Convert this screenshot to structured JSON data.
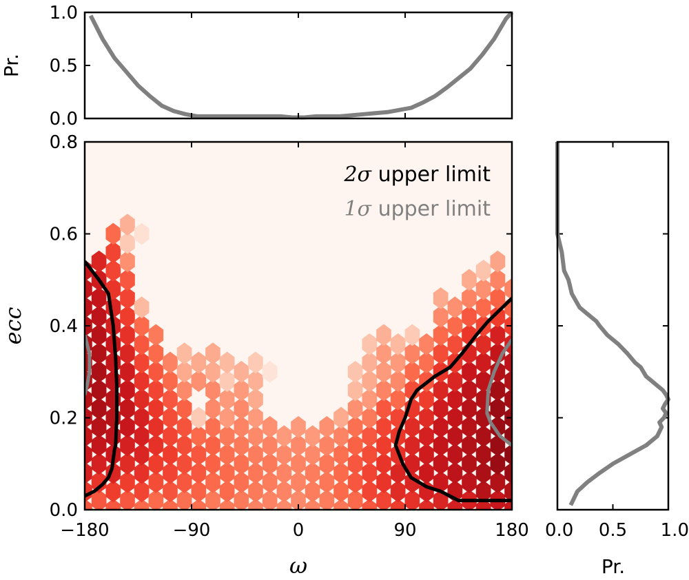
{
  "chart_data": [
    {
      "panel": "top-marginal",
      "type": "line",
      "ylabel": "Pr.",
      "xlim": [
        -180,
        180
      ],
      "ylim": [
        0.0,
        1.0
      ],
      "yticks": [
        "0.0",
        "0.5",
        "1.0"
      ],
      "series": [
        {
          "color": "#808080",
          "x": [
            -175,
            -165,
            -155,
            -145,
            -135,
            -125,
            -115,
            -105,
            -95,
            -85,
            -75,
            -65,
            -55,
            -45,
            -35,
            -25,
            -15,
            -5,
            5,
            15,
            25,
            35,
            45,
            55,
            65,
            75,
            85,
            95,
            105,
            115,
            125,
            135,
            145,
            155,
            165,
            175,
            180
          ],
          "y": [
            0.97,
            0.75,
            0.57,
            0.44,
            0.31,
            0.21,
            0.12,
            0.07,
            0.04,
            0.02,
            0.02,
            0.02,
            0.02,
            0.02,
            0.02,
            0.02,
            0.02,
            0.01,
            0.01,
            0.02,
            0.02,
            0.02,
            0.03,
            0.04,
            0.05,
            0.06,
            0.08,
            0.1,
            0.15,
            0.21,
            0.29,
            0.38,
            0.47,
            0.6,
            0.75,
            0.94,
            1.0
          ]
        }
      ]
    },
    {
      "panel": "main-hexbin",
      "type": "heatmap",
      "xlabel": "ω",
      "ylabel": "ecc",
      "xlim": [
        -180,
        180
      ],
      "ylim": [
        0.0,
        0.8
      ],
      "xticks": [
        "−180",
        "−90",
        "0",
        "90",
        "180"
      ],
      "yticks": [
        "0.0",
        "0.2",
        "0.4",
        "0.6",
        "0.8"
      ],
      "background_color": "#fff5f0",
      "colormap": [
        "#fff5f0",
        "#fee0d2",
        "#fcbba1",
        "#fc9272",
        "#fb6a4a",
        "#ef3b2c",
        "#cb181d",
        "#a50f15",
        "#67000d"
      ],
      "hex_columns_omega": [
        -180,
        -168,
        -156,
        -144,
        -132,
        -120,
        -108,
        -96,
        -84,
        -72,
        -60,
        -48,
        -36,
        -24,
        -12,
        0,
        12,
        24,
        36,
        48,
        60,
        72,
        84,
        96,
        108,
        120,
        132,
        144,
        156,
        168,
        180
      ],
      "hex_row_spacing_ecc": 0.04,
      "hex_row_offset_ecc": 0.02,
      "counts_by_column": [
        [
          0.55,
          0.65,
          0.72,
          0.75,
          0.78,
          0.8,
          0.82,
          0.84,
          0.84,
          0.82,
          0.82,
          0.8,
          0.78,
          0.76
        ],
        [
          0.55,
          0.65,
          0.72,
          0.78,
          0.82,
          0.86,
          0.86,
          0.86,
          0.84,
          0.82,
          0.8,
          0.78,
          0.74,
          0.7
        ],
        [
          0.55,
          0.62,
          0.7,
          0.75,
          0.8,
          0.82,
          0.82,
          0.8,
          0.78,
          0.76,
          0.72,
          0.7,
          0.65,
          0.6,
          0.6,
          0.5
        ],
        [
          0.55,
          0.62,
          0.68,
          0.72,
          0.76,
          0.78,
          0.76,
          0.74,
          0.7,
          0.66,
          0.62,
          0.6,
          0.55,
          0.38,
          0.2,
          0.28
        ],
        [
          0.5,
          0.6,
          0.66,
          0.7,
          0.72,
          0.72,
          0.68,
          0.65,
          0.6,
          0.55,
          0.5,
          0.25,
          0,
          0,
          0,
          0.12
        ],
        [
          0.5,
          0.58,
          0.62,
          0.66,
          0.66,
          0.64,
          0.6,
          0.55,
          0.5,
          0.45
        ],
        [
          0.5,
          0.56,
          0.6,
          0.62,
          0.6,
          0.58,
          0.55,
          0.5,
          0.42
        ],
        [
          0.48,
          0.55,
          0.58,
          0.58,
          0.56,
          0.52,
          0.4,
          0.3,
          0.25
        ],
        [
          0.48,
          0.52,
          0.55,
          0.55,
          0.5,
          0.2,
          0,
          0.38,
          0.3
        ],
        [
          0.45,
          0.5,
          0.52,
          0.52,
          0.48,
          0.4,
          0.4,
          0.3,
          0.3
        ],
        [
          0.45,
          0.5,
          0.5,
          0.48,
          0.45,
          0.35,
          0.35,
          0.2,
          0.25
        ],
        [
          0.45,
          0.48,
          0.48,
          0.45,
          0.42,
          0.4,
          0.35,
          0.28
        ],
        [
          0.42,
          0.45,
          0.46,
          0.44,
          0.4,
          0.35,
          0.3,
          0.28,
          0.2
        ],
        [
          0.42,
          0.44,
          0.45,
          0.42,
          0.38,
          0,
          0,
          0.1
        ],
        [
          0.4,
          0.42,
          0.42,
          0.4,
          0.35
        ],
        [
          0.4,
          0.42,
          0.42,
          0.4,
          0.35
        ],
        [
          0.42,
          0.44,
          0.44,
          0.4,
          0.35
        ],
        [
          0.44,
          0.46,
          0.46,
          0.42,
          0.38
        ],
        [
          0.46,
          0.5,
          0.5,
          0.48,
          0.42,
          0.3
        ],
        [
          0.5,
          0.55,
          0.55,
          0.52,
          0.48,
          0.38,
          0.25,
          0.22
        ],
        [
          0.55,
          0.6,
          0.6,
          0.58,
          0.55,
          0.45,
          0.35,
          0.3,
          0.28,
          0.22
        ],
        [
          0.6,
          0.65,
          0.65,
          0.62,
          0.6,
          0.55,
          0.42,
          0.35,
          0.35,
          0.28
        ],
        [
          0.62,
          0.68,
          0.7,
          0.66,
          0.64,
          0.6,
          0.5,
          0.4,
          0.35,
          0.25
        ],
        [
          0.66,
          0.7,
          0.72,
          0.7,
          0.68,
          0.64,
          0.58,
          0.5,
          0.42,
          0.2
        ],
        [
          0.68,
          0.72,
          0.75,
          0.74,
          0.72,
          0.68,
          0.62,
          0.55,
          0.48,
          0.42
        ],
        [
          0.7,
          0.75,
          0.78,
          0.78,
          0.76,
          0.74,
          0.7,
          0.64,
          0.58,
          0.5,
          0.4,
          0.3
        ],
        [
          0.72,
          0.78,
          0.8,
          0.8,
          0.8,
          0.78,
          0.75,
          0.7,
          0.64,
          0.58,
          0.5,
          0.38
        ],
        [
          0.72,
          0.8,
          0.84,
          0.84,
          0.82,
          0.82,
          0.8,
          0.76,
          0.7,
          0.64,
          0.55,
          0.42,
          0.3
        ],
        [
          0.74,
          0.82,
          0.86,
          0.86,
          0.86,
          0.86,
          0.84,
          0.8,
          0.74,
          0.68,
          0.6,
          0.5,
          0.38,
          0.22
        ],
        [
          0.76,
          0.84,
          0.9,
          0.9,
          0.9,
          0.9,
          0.88,
          0.84,
          0.78,
          0.72,
          0.62,
          0.52,
          0.42,
          0.32
        ],
        [
          0.76,
          0.84,
          0.9,
          0.92,
          0.92,
          0.9,
          0.88,
          0.84,
          0.8,
          0.72,
          0.62,
          0.52,
          0.42
        ]
      ],
      "series": [
        {
          "name": "2σ upper limit",
          "color": "#000000",
          "contours": [
            {
              "omega": [
                -180,
                -168,
                -160,
                -156,
                -154,
                -153,
                -153,
                -154,
                -155,
                -157,
                -160,
                -165,
                -172,
                -180
              ],
              "ecc": [
                0.54,
                0.5,
                0.47,
                0.4,
                0.33,
                0.27,
                0.2,
                0.14,
                0.13,
                0.09,
                0.07,
                0.055,
                0.04,
                0.03
              ]
            },
            {
              "omega": [
                180,
                168,
                160,
                150,
                138,
                128,
                115,
                100,
                95,
                90,
                85,
                82,
                88,
                95,
                108,
                120,
                135,
                150,
                165,
                180
              ],
              "ecc": [
                0.46,
                0.43,
                0.41,
                0.38,
                0.34,
                0.31,
                0.29,
                0.26,
                0.24,
                0.2,
                0.17,
                0.14,
                0.1,
                0.07,
                0.05,
                0.04,
                0.02,
                0.02,
                0.02,
                0.02
              ]
            }
          ]
        },
        {
          "name": "1σ upper limit",
          "color": "#808080",
          "contours": [
            {
              "omega": [
                -180,
                -176,
                -176,
                -178,
                -180
              ],
              "ecc": [
                0.38,
                0.34,
                0.3,
                0.27,
                0.25
              ]
            },
            {
              "omega": [
                180,
                172,
                165,
                160,
                159,
                162,
                170,
                180
              ],
              "ecc": [
                0.37,
                0.34,
                0.3,
                0.26,
                0.21,
                0.19,
                0.16,
                0.14
              ]
            }
          ]
        }
      ]
    },
    {
      "panel": "right-marginal",
      "type": "line",
      "xlabel": "Pr.",
      "xlim": [
        0.0,
        1.0
      ],
      "ylim": [
        0.0,
        0.8
      ],
      "xticks": [
        "0.0",
        "0.5",
        "1.0"
      ],
      "series": [
        {
          "color": "#808080",
          "pr": [
            0.0,
            0.0,
            0.02,
            0.04,
            0.06,
            0.1,
            0.13,
            0.2,
            0.3,
            0.35,
            0.38,
            0.45,
            0.55,
            0.63,
            0.7,
            0.75,
            0.8,
            0.85,
            0.9,
            0.95,
            0.98,
            1.0,
            0.97,
            0.95,
            0.98,
            0.96,
            0.92,
            0.94,
            0.9,
            0.8,
            0.65,
            0.5,
            0.38,
            0.27,
            0.18,
            0.12
          ],
          "ecc": [
            0.8,
            0.6,
            0.58,
            0.56,
            0.52,
            0.5,
            0.47,
            0.44,
            0.42,
            0.41,
            0.4,
            0.38,
            0.36,
            0.34,
            0.32,
            0.31,
            0.29,
            0.28,
            0.27,
            0.26,
            0.25,
            0.24,
            0.23,
            0.22,
            0.21,
            0.2,
            0.19,
            0.18,
            0.16,
            0.14,
            0.12,
            0.1,
            0.08,
            0.06,
            0.04,
            0.01
          ]
        }
      ]
    }
  ],
  "legend": {
    "entry_2sigma": {
      "math": "2σ",
      "text": " upper limit",
      "color": "#000000"
    },
    "entry_1sigma": {
      "math": "1σ",
      "text": " upper limit",
      "color": "#808080"
    }
  }
}
